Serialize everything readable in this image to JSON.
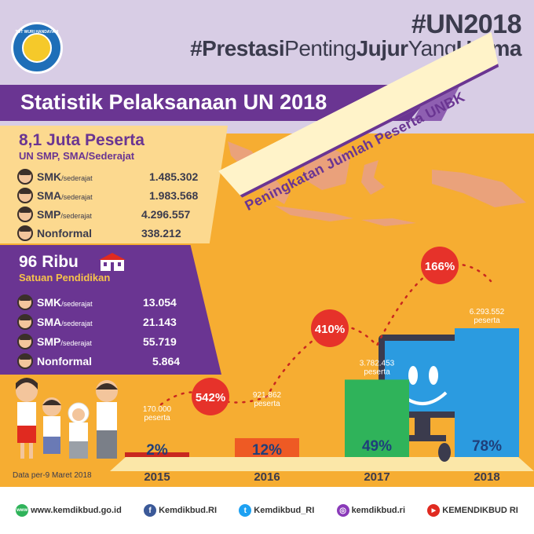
{
  "header": {
    "logo_text": "TUT WURI HANDAYANI",
    "hashtag1": "#UN2018",
    "hashtag2_parts": [
      "#Prestasi",
      "Penting",
      "Jujur",
      "Yang",
      "Utama"
    ],
    "title": "Statistik Pelaksanaan UN 2018"
  },
  "participants": {
    "headline": "8,1 Juta Peserta",
    "subtitle": "UN SMP, SMA/Sederajat",
    "rows": [
      {
        "label": "SMK",
        "suffix": "/sederajat",
        "value": "1.485.302"
      },
      {
        "label": "SMA",
        "suffix": "/sederajat",
        "value": "1.983.568"
      },
      {
        "label": "SMP",
        "suffix": "/sederajat",
        "value": "4.296.557"
      },
      {
        "label": "Nonformal",
        "suffix": "",
        "value": "338.212"
      }
    ]
  },
  "schools": {
    "headline": "96 Ribu",
    "subtitle": "Satuan Pendidikan",
    "rows": [
      {
        "label": "SMK",
        "suffix": "/sederajat",
        "value": "13.054"
      },
      {
        "label": "SMA",
        "suffix": "/sederajat",
        "value": "21.143"
      },
      {
        "label": "SMP",
        "suffix": "/sederajat",
        "value": "55.719"
      },
      {
        "label": "Nonformal",
        "suffix": "",
        "value": "5.864"
      }
    ]
  },
  "banner": "Peningkatan Jumlah Peserta UNBK",
  "chart_data": {
    "type": "bar",
    "categories": [
      "2015",
      "2016",
      "2017",
      "2018"
    ],
    "values": [
      170000,
      921862,
      3782453,
      6293552
    ],
    "value_labels": [
      "170.000",
      "921.862",
      "3.782.453",
      "6.293.552"
    ],
    "unit_label": "peserta",
    "share_labels": [
      "2%",
      "12%",
      "49%",
      "78%"
    ],
    "growth_labels": [
      "542%",
      "410%",
      "166%"
    ],
    "colors": [
      "#c9281f",
      "#ee5a24",
      "#2fb35a",
      "#2b9be0"
    ],
    "ylim": [
      0,
      6600000
    ]
  },
  "note": "Data per-9 Maret 2018",
  "footer": [
    {
      "icon": "globe-icon",
      "color": "#2fb35a",
      "glyph": "www",
      "text": "www.kemdikbud.go.id"
    },
    {
      "icon": "facebook-icon",
      "color": "#3b5998",
      "glyph": "f",
      "text": "Kemdikbud.RI"
    },
    {
      "icon": "twitter-icon",
      "color": "#1da1f2",
      "glyph": "t",
      "text": "Kemdikbud_RI"
    },
    {
      "icon": "instagram-icon",
      "color": "#8a3ab9",
      "glyph": "◎",
      "text": "kemdikbud.ri"
    },
    {
      "icon": "youtube-icon",
      "color": "#e02a20",
      "glyph": "▶",
      "text": "KEMENDIKBUD RI"
    }
  ]
}
